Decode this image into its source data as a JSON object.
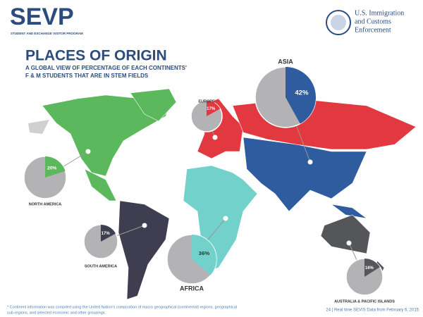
{
  "header": {
    "logo": "SEVP",
    "program": "STUDENT AND EXCHANGE VISITOR PROGRAM",
    "agency": [
      "U.S. Immigration",
      "and Customs",
      "Enforcement"
    ]
  },
  "chart_data": {
    "type": "pie",
    "title": "PLACES OF ORIGIN",
    "subtitle": [
      "A GLOBAL VIEW OF PERCENTAGE OF EACH CONTINENTS'",
      "F & M STUDENTS THAT ARE IN STEM FIELDS"
    ],
    "categories": [
      "ASIA",
      "EUROPE",
      "NORTH AMERICA",
      "SOUTH AMERICA",
      "AFRICA",
      "AUSTRALIA & PACIFIC ISLANDS"
    ],
    "values": [
      42,
      17,
      20,
      17,
      36,
      16
    ],
    "value_labels": [
      "42%",
      "17%",
      "20%",
      "17%",
      "36%",
      "16%"
    ],
    "colors": [
      "#2f5c9e",
      "#e2383f",
      "#5bb85d",
      "#3e3e50",
      "#72d2cb",
      "#55565a"
    ]
  },
  "footer": {
    "note": [
      "* Continent information was compiled using the United Nation's composition of macro geographical (continental) regions, geographical",
      "sub-regions, and selected economic and other groupings."
    ],
    "page": "24 | Real time SEVIS Data from February 6, 2015"
  }
}
